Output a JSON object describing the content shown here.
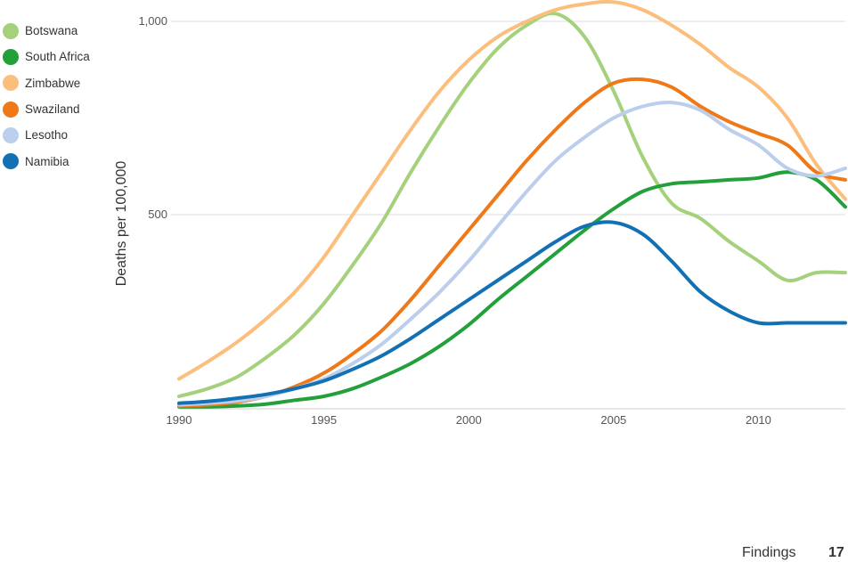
{
  "chart_data": {
    "type": "line",
    "title": "",
    "xlabel": "",
    "ylabel": "Deaths per 100,000",
    "xlim": [
      1990,
      2013
    ],
    "ylim": [
      0,
      1000
    ],
    "x_ticks": [
      "1990",
      "1995",
      "2000",
      "2005",
      "2010"
    ],
    "y_ticks": [
      "500",
      "1,000"
    ],
    "grid": "horizontal",
    "legend": "left",
    "x": [
      1990,
      1991,
      1992,
      1993,
      1994,
      1995,
      1996,
      1997,
      1998,
      1999,
      2000,
      2001,
      2002,
      2003,
      2004,
      2005,
      2006,
      2007,
      2008,
      2009,
      2010,
      2011,
      2012,
      2013
    ],
    "series": [
      {
        "name": "Botswana",
        "color": "#a5d17d",
        "values": [
          30,
          50,
          80,
          130,
          190,
          270,
          370,
          480,
          610,
          730,
          840,
          930,
          990,
          1020,
          960,
          820,
          650,
          530,
          490,
          430,
          380,
          330,
          350,
          350
        ]
      },
      {
        "name": "South Africa",
        "color": "#23a03a",
        "values": [
          3,
          3,
          5,
          10,
          20,
          30,
          50,
          80,
          115,
          160,
          215,
          280,
          340,
          400,
          460,
          515,
          560,
          580,
          585,
          590,
          595,
          610,
          590,
          520
        ]
      },
      {
        "name": "Zimbabwe",
        "color": "#fcbe7d",
        "values": [
          75,
          120,
          170,
          230,
          300,
          390,
          500,
          610,
          720,
          820,
          900,
          960,
          1000,
          1030,
          1045,
          1050,
          1030,
          990,
          940,
          880,
          830,
          750,
          630,
          540
        ]
      },
      {
        "name": "Swaziland",
        "color": "#ef7819",
        "values": [
          5,
          8,
          15,
          30,
          55,
          90,
          140,
          200,
          280,
          370,
          460,
          550,
          640,
          720,
          790,
          840,
          850,
          830,
          780,
          740,
          710,
          680,
          610,
          590
        ]
      },
      {
        "name": "Lesotho",
        "color": "#bbcfec",
        "values": [
          8,
          12,
          18,
          30,
          50,
          75,
          115,
          165,
          230,
          300,
          380,
          470,
          560,
          640,
          700,
          750,
          780,
          790,
          770,
          720,
          680,
          620,
          600,
          620
        ]
      },
      {
        "name": "Namibia",
        "color": "#1271b5",
        "values": [
          12,
          17,
          25,
          35,
          50,
          70,
          100,
          135,
          180,
          230,
          280,
          330,
          380,
          430,
          470,
          480,
          450,
          380,
          300,
          250,
          220,
          220,
          220,
          220
        ]
      }
    ]
  },
  "footer": {
    "section_label": "Findings",
    "page_number": "17"
  }
}
